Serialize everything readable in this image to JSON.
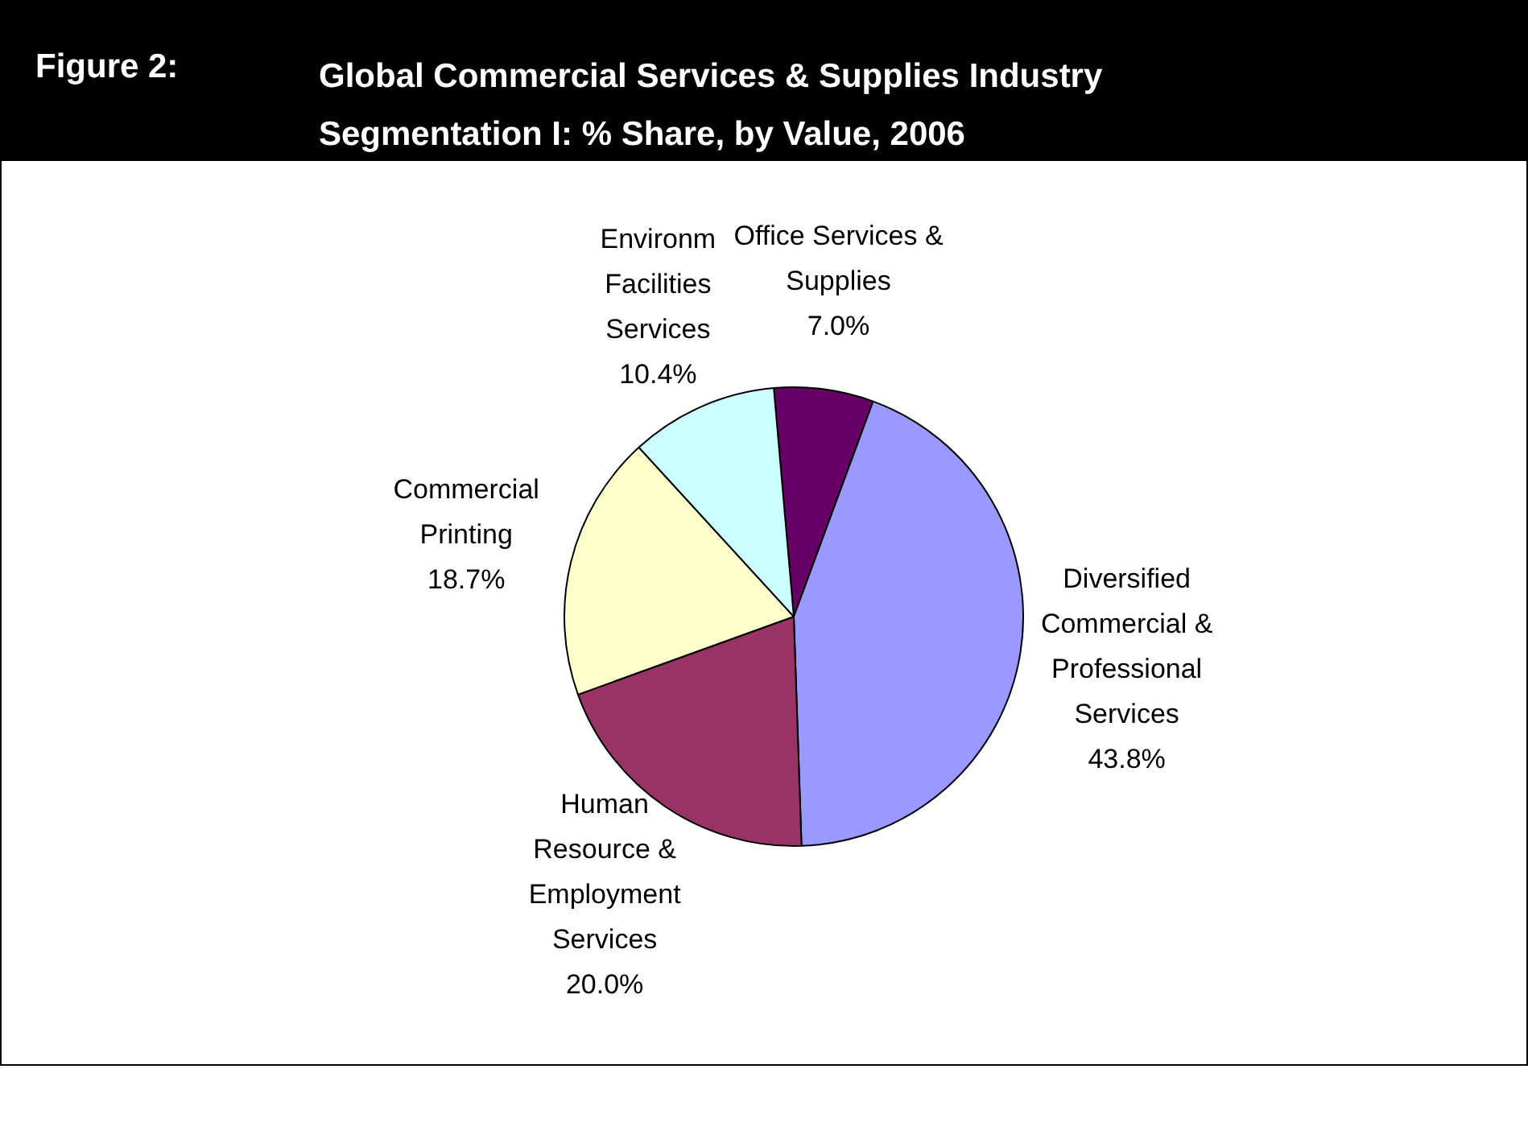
{
  "chart_data": {
    "type": "pie",
    "title": "Global Commercial Services & Supplies Industry Segmentation I: % Share, by Value, 2006",
    "annotations": [
      "Figure 2:"
    ],
    "categories": [
      "Office Services & Supplies",
      "Diversified Commercial & Professional Services",
      "Human Resource & Employment Services",
      "Commercial Printing",
      "Environm Facilities Services"
    ],
    "values": [
      7.0,
      43.8,
      20.0,
      18.7,
      10.4
    ],
    "colors": [
      "#660066",
      "#9999ff",
      "#993366",
      "#ffffcc",
      "#ccffff"
    ],
    "value_labels": [
      "7.0%",
      "43.8%",
      "20.0%",
      "18.7%",
      "10.4%"
    ],
    "legend": false
  }
}
